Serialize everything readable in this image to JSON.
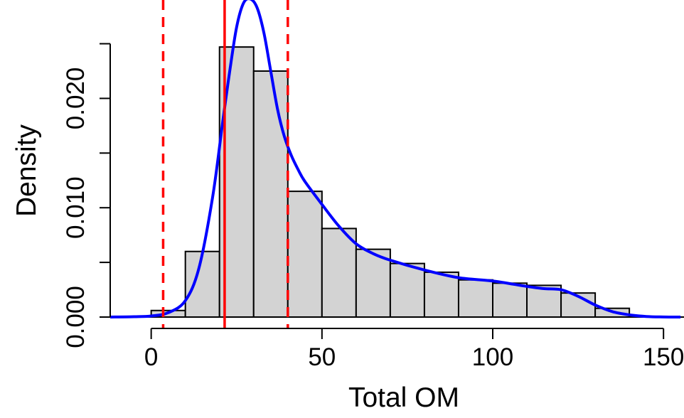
{
  "chart_data": {
    "type": "bar",
    "xlabel": "Total OM",
    "ylabel": "Density",
    "xlim": [
      -12,
      156
    ],
    "ylim": [
      0,
      0.029
    ],
    "x_ticks": [
      0,
      50,
      100,
      150
    ],
    "x_tick_labels": [
      "0",
      "50",
      "100",
      "150"
    ],
    "y_ticks": [
      0,
      0.005,
      0.01,
      0.015,
      0.02,
      0.025
    ],
    "y_tick_labels": [
      "0.000",
      "",
      "0.010",
      "",
      "0.020",
      ""
    ],
    "histogram": {
      "bin_edges": [
        0,
        10,
        20,
        30,
        40,
        50,
        60,
        70,
        80,
        90,
        100,
        110,
        120,
        130,
        140
      ],
      "density": [
        0.0006,
        0.006,
        0.0247,
        0.0225,
        0.0115,
        0.0081,
        0.0062,
        0.0049,
        0.0041,
        0.0034,
        0.0031,
        0.0029,
        0.0022,
        0.0008
      ],
      "fill": "#d3d3d3",
      "stroke": "#000000"
    },
    "density_curve": {
      "color": "#0000ff",
      "x": [
        -12,
        -5,
        0,
        5,
        10,
        14,
        18,
        21,
        23,
        25,
        27,
        29,
        31,
        33,
        35,
        37,
        39,
        41,
        43,
        45,
        50,
        55,
        60,
        65,
        70,
        80,
        90,
        100,
        110,
        115,
        120,
        125,
        130,
        135,
        140,
        145,
        150,
        155
      ],
      "y": [
        0,
        3e-05,
        0.0001,
        0.0004,
        0.0015,
        0.0045,
        0.011,
        0.018,
        0.0225,
        0.0265,
        0.0287,
        0.0291,
        0.0283,
        0.026,
        0.0225,
        0.019,
        0.0165,
        0.0148,
        0.0135,
        0.0124,
        0.0103,
        0.0083,
        0.0067,
        0.0058,
        0.0052,
        0.0043,
        0.0036,
        0.0033,
        0.0028,
        0.0026,
        0.0025,
        0.0019,
        0.0011,
        0.0005,
        0.0002,
        5e-05,
        1e-05,
        0
      ]
    },
    "vertical_lines": [
      {
        "x": 3.5,
        "style": "dashed",
        "color": "#ff0000"
      },
      {
        "x": 21.5,
        "style": "solid",
        "color": "#ff0000"
      },
      {
        "x": 40,
        "style": "dashed",
        "color": "#ff0000"
      }
    ],
    "grid": false,
    "legend": "none"
  }
}
